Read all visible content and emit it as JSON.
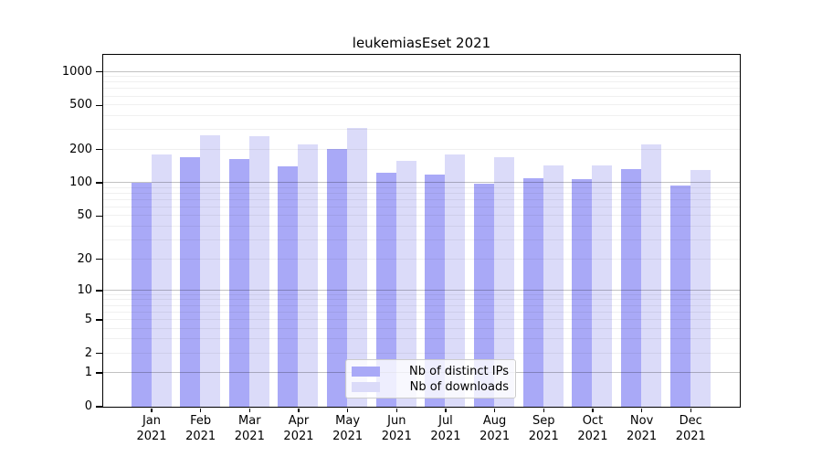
{
  "chart_data": {
    "type": "bar",
    "title": "leukemiasEset 2021",
    "categories": [
      "Jan 2021",
      "Feb 2021",
      "Mar 2021",
      "Apr 2021",
      "May 2021",
      "Jun 2021",
      "Jul 2021",
      "Aug 2021",
      "Sep 2021",
      "Oct 2021",
      "Nov 2021",
      "Dec 2021"
    ],
    "series": [
      {
        "name": "Nb of distinct IPs",
        "color": "#a9a9f7",
        "values": [
          100,
          171,
          164,
          140,
          202,
          123,
          117,
          98,
          110,
          107,
          133,
          94
        ]
      },
      {
        "name": "Nb of downloads",
        "color": "#dbdbf9",
        "values": [
          180,
          267,
          260,
          219,
          310,
          157,
          178,
          171,
          144,
          144,
          220,
          130
        ]
      }
    ],
    "xlabel": "",
    "ylabel": "",
    "yticks": [
      0,
      1,
      2,
      5,
      10,
      20,
      50,
      100,
      200,
      500,
      1000
    ],
    "yscale": "log1p",
    "ylim": [
      0,
      1420
    ],
    "grid": "horizontal major at powers of 10, minor at 2-9 per decade",
    "legend_position": "inside lower center"
  }
}
